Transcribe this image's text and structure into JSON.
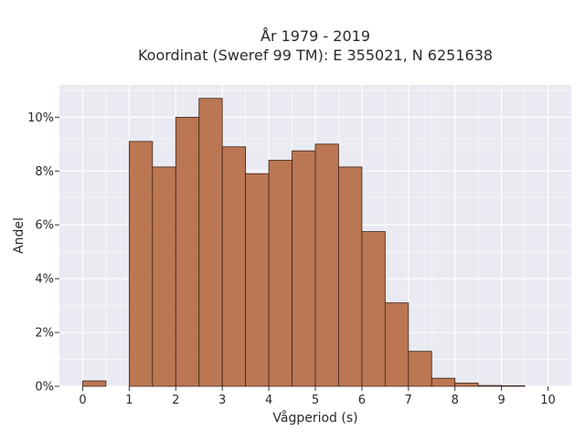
{
  "chart_data": {
    "type": "bar",
    "title": "År 1979 - 2019",
    "subtitle": "Koordinat (Sweref 99 TM): E 355021, N 6251638",
    "xlabel": "Vågperiod (s)",
    "ylabel": "Andel",
    "xlim": [
      -0.5,
      10.5
    ],
    "ylim": [
      0,
      11.2
    ],
    "x_ticks": [
      0,
      1,
      2,
      3,
      4,
      5,
      6,
      7,
      8,
      9,
      10
    ],
    "y_ticks": [
      0,
      2,
      4,
      6,
      8,
      10
    ],
    "y_tick_labels": [
      "0%",
      "2%",
      "4%",
      "6%",
      "8%",
      "10%"
    ],
    "bin_width": 0.5,
    "bins": [
      {
        "start": 0.0,
        "value": 0.2
      },
      {
        "start": 0.5,
        "value": 0.0
      },
      {
        "start": 1.0,
        "value": 9.1
      },
      {
        "start": 1.5,
        "value": 8.15
      },
      {
        "start": 2.0,
        "value": 10.0
      },
      {
        "start": 2.5,
        "value": 10.7
      },
      {
        "start": 3.0,
        "value": 8.9
      },
      {
        "start": 3.5,
        "value": 7.9
      },
      {
        "start": 4.0,
        "value": 8.4
      },
      {
        "start": 4.5,
        "value": 8.75
      },
      {
        "start": 5.0,
        "value": 9.0
      },
      {
        "start": 5.5,
        "value": 8.15
      },
      {
        "start": 6.0,
        "value": 5.75
      },
      {
        "start": 6.5,
        "value": 3.1
      },
      {
        "start": 7.0,
        "value": 1.3
      },
      {
        "start": 7.5,
        "value": 0.3
      },
      {
        "start": 8.0,
        "value": 0.12
      },
      {
        "start": 8.5,
        "value": 0.03
      },
      {
        "start": 9.0,
        "value": 0.02
      }
    ],
    "bar_color": "#b8704a",
    "bar_edge_color": "#3a2418",
    "plot_background": "#eaeaf2",
    "grid": true,
    "grid_color": "#ffffff",
    "legend": false
  }
}
